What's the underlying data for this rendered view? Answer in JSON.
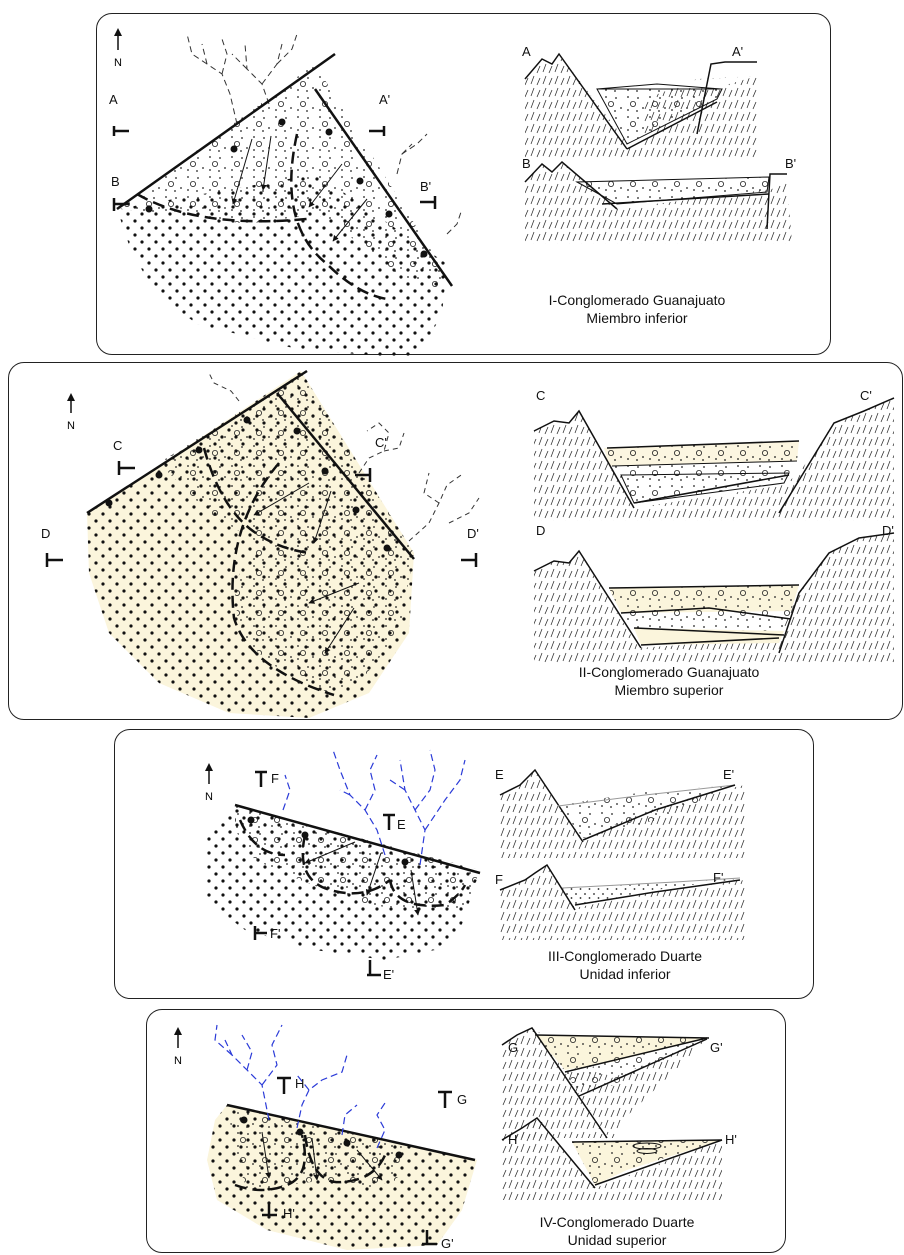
{
  "north": "N",
  "panels": [
    {
      "caption": [
        "I-Conglomerado Guanajuato",
        "Miembro inferior"
      ],
      "map_labels": [
        "A",
        "A'",
        "B",
        "B'"
      ],
      "sections": [
        {
          "left": "A",
          "right": "A'"
        },
        {
          "left": "B",
          "right": "B'"
        }
      ]
    },
    {
      "caption": [
        "II-Conglomerado Guanajuato",
        "Miembro superior"
      ],
      "map_labels": [
        "C",
        "C'",
        "D",
        "D'"
      ],
      "sections": [
        {
          "left": "C",
          "right": "C'"
        },
        {
          "left": "D",
          "right": "D'"
        }
      ]
    },
    {
      "caption": [
        "III-Conglomerado Duarte",
        "Unidad inferior"
      ],
      "map_labels": [
        "F",
        "E",
        "F'",
        "E'"
      ],
      "sections": [
        {
          "left": "E",
          "right": "E'"
        },
        {
          "left": "F",
          "right": "F'"
        }
      ]
    },
    {
      "caption": [
        "IV-Conglomerado Duarte",
        "Unidad superior"
      ],
      "map_labels": [
        "H",
        "G",
        "H'",
        "G'"
      ],
      "sections": [
        {
          "left": "G",
          "right": "G'"
        },
        {
          "left": "H",
          "right": "H'"
        }
      ]
    }
  ],
  "colors": {
    "sand_fill": "#fbf5dc",
    "drainage_blue": "#2b3bd8",
    "line": "#111111"
  }
}
